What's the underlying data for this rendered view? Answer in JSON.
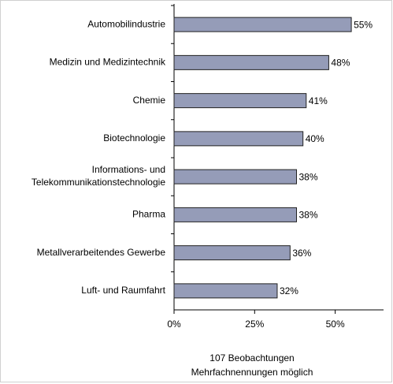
{
  "chart_data": {
    "type": "barh",
    "categories": [
      "Automobilindustrie",
      "Medizin und Medizintechnik",
      "Chemie",
      "Biotechnologie",
      "Informations- und\nTelekommunikationstechnologie",
      "Pharma",
      "Metallverarbeitendes Gewerbe",
      "Luft- und Raumfahrt"
    ],
    "values": [
      55,
      48,
      41,
      40,
      38,
      38,
      36,
      32
    ],
    "value_labels": [
      "55%",
      "48%",
      "41%",
      "40%",
      "38%",
      "38%",
      "36%",
      "32%"
    ],
    "color": "#959cb8",
    "xlim": [
      0,
      65
    ],
    "xticks": [
      {
        "value": 0,
        "label": "0%"
      },
      {
        "value": 25,
        "label": "25%"
      },
      {
        "value": 50,
        "label": "50%"
      }
    ],
    "annotations": [
      "107 Beobachtungen",
      "Mehrfachnennungen möglich"
    ]
  }
}
